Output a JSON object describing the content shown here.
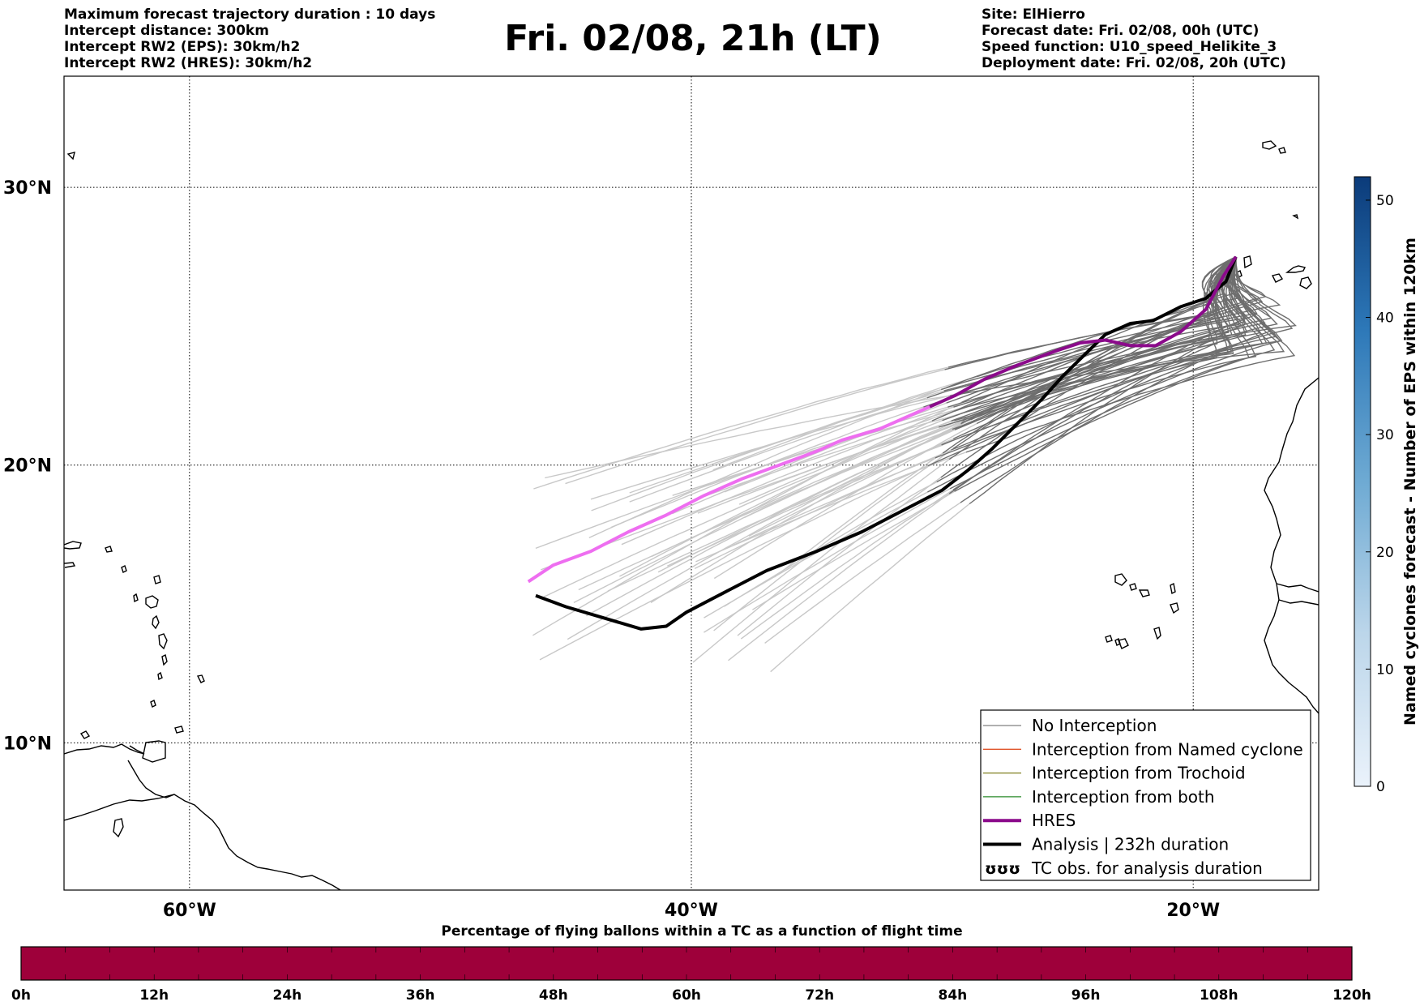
{
  "header_left": [
    "Maximum forecast trajectory duration : 10 days",
    "Intercept distance: 300km",
    "Intercept RW2 (EPS):  30km/h2",
    "Intercept RW2 (HRES): 30km/h2"
  ],
  "header_right": [
    "Site: ElHierro",
    "Forecast date: Fri. 02/08, 00h (UTC)",
    "Speed function: U10_speed_Helikite_3",
    "Deployment date: Fri. 02/08, 20h (UTC)"
  ],
  "title": "Fri. 02/08, 21h (LT)",
  "map": {
    "lat_labels": [
      "30°N",
      "20°N",
      "10°N"
    ],
    "lon_labels": [
      "60°W",
      "40°W",
      "20°W"
    ],
    "gridlines": {
      "lat": [
        30,
        20,
        10
      ],
      "lon": [
        -60,
        -40,
        -20
      ]
    },
    "extent": {
      "lon": [
        -65,
        -15
      ],
      "lat": [
        4.7,
        34
      ]
    }
  },
  "legend": {
    "items": [
      {
        "label": "No Interception",
        "color": "#808080",
        "style": "thin"
      },
      {
        "label": "Interception from Named cyclone",
        "color": "#e0542a",
        "style": "thin"
      },
      {
        "label": "Interception from Trochoid",
        "color": "#808020",
        "style": "thin"
      },
      {
        "label": "Interception from both",
        "color": "#2a8a2a",
        "style": "thin"
      },
      {
        "label": "HRES",
        "color": "#8b0a8b",
        "style": "thick"
      },
      {
        "label": "Analysis | 232h duration",
        "color": "#000000",
        "style": "thick"
      },
      {
        "label": "TC obs. for analysis duration",
        "color": "#000000",
        "style": "symbol",
        "symbol": "ʊʊʊ"
      }
    ]
  },
  "trajectories": {
    "hres": [
      [
        -18.3,
        27.5
      ],
      [
        -18.8,
        26.8
      ],
      [
        -19.5,
        25.6
      ],
      [
        -20.5,
        24.8
      ],
      [
        -21.5,
        24.3
      ],
      [
        -22.5,
        24.3
      ],
      [
        -23.5,
        24.5
      ],
      [
        -24.5,
        24.4
      ],
      [
        -25.5,
        24.1
      ],
      [
        -27,
        23.6
      ],
      [
        -28.3,
        23.1
      ],
      [
        -29.5,
        22.5
      ],
      [
        -30.5,
        22.1
      ],
      [
        -31.5,
        21.7
      ],
      [
        -32.5,
        21.3
      ],
      [
        -34,
        20.9
      ],
      [
        -35,
        20.5
      ],
      [
        -36.5,
        20.0
      ],
      [
        -38,
        19.5
      ],
      [
        -39.5,
        18.9
      ],
      [
        -41,
        18.2
      ],
      [
        -42.5,
        17.6
      ],
      [
        -44,
        16.9
      ],
      [
        -45.5,
        16.4
      ],
      [
        -46.5,
        15.8
      ]
    ],
    "hres_split_lon": -30.5,
    "analysis": [
      [
        -18.3,
        27.5
      ],
      [
        -18.7,
        26.6
      ],
      [
        -19.5,
        26.0
      ],
      [
        -20.5,
        25.7
      ],
      [
        -21.6,
        25.2
      ],
      [
        -22.5,
        25.1
      ],
      [
        -23.5,
        24.7
      ],
      [
        -24.3,
        24.0
      ],
      [
        -25.2,
        23.2
      ],
      [
        -26,
        22.4
      ],
      [
        -27,
        21.5
      ],
      [
        -28,
        20.6
      ],
      [
        -29,
        19.8
      ],
      [
        -30,
        19.1
      ],
      [
        -31.5,
        18.4
      ],
      [
        -33.2,
        17.6
      ],
      [
        -35,
        16.9
      ],
      [
        -37,
        16.2
      ],
      [
        -38.5,
        15.5
      ],
      [
        -40.2,
        14.7
      ],
      [
        -41.0,
        14.2
      ],
      [
        -42.0,
        14.1
      ],
      [
        -43.5,
        14.5
      ],
      [
        -45,
        14.9
      ],
      [
        -46.2,
        15.3
      ]
    ]
  },
  "colorbar_right": {
    "label": "Named cyclones forecast - Number of EPS within 120km",
    "ticks": [
      "0",
      "10",
      "20",
      "30",
      "40",
      "50"
    ],
    "range": [
      0,
      52
    ]
  },
  "bottom_bar": {
    "title": "Percentage of flying ballons within a TC as a function of flight time",
    "ticks": [
      "0h",
      "12h",
      "24h",
      "36h",
      "48h",
      "60h",
      "72h",
      "84h",
      "96h",
      "108h",
      "120h"
    ],
    "fill_color": "#9e003a",
    "segments": 120
  }
}
